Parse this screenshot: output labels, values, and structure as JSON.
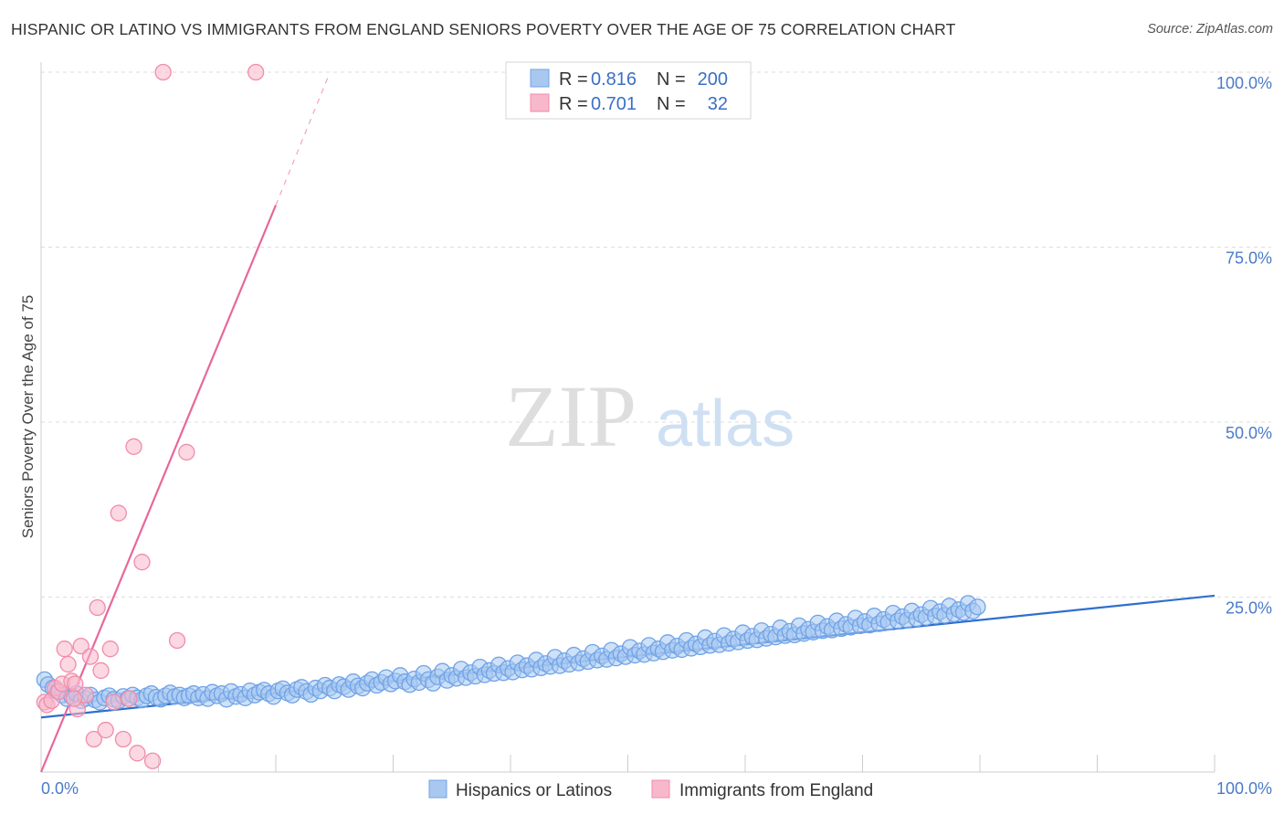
{
  "title": "HISPANIC OR LATINO VS IMMIGRANTS FROM ENGLAND SENIORS POVERTY OVER THE AGE OF 75 CORRELATION CHART",
  "source": "Source: ZipAtlas.com",
  "watermark": {
    "zip": "ZIP",
    "atlas": "atlas"
  },
  "legend": {
    "rows": [
      {
        "r_label": "R = ",
        "r_value": "0.816",
        "n_label": "N = ",
        "n_value": "200",
        "color": "#a8c8f0"
      },
      {
        "r_label": "R = ",
        "r_value": "0.701",
        "n_label": "N = ",
        "n_value": "32",
        "color": "#f7b8cb"
      }
    ]
  },
  "chart_data": {
    "type": "scatter",
    "xlabel": "",
    "ylabel": "Seniors Poverty Over the Age of 75",
    "xlim": [
      0,
      100
    ],
    "ylim": [
      0,
      100
    ],
    "x_tick_labels": [
      "0.0%",
      "100.0%"
    ],
    "y_ticks": [
      25,
      50,
      75,
      100
    ],
    "y_tick_labels": [
      "25.0%",
      "50.0%",
      "75.0%",
      "100.0%"
    ],
    "grid": true,
    "legend_position": "top-center",
    "series": [
      {
        "name": "Hispanics or Latinos",
        "color": "#6fa3e8",
        "fill": "#a8c8f0",
        "trend": {
          "x": [
            0,
            100
          ],
          "y": [
            7.8,
            25.2
          ],
          "color": "#2f6fce"
        },
        "points": [
          [
            0.3,
            13.2
          ],
          [
            0.6,
            12.5
          ],
          [
            1.0,
            12.0
          ],
          [
            1.4,
            11.5
          ],
          [
            1.8,
            11.0
          ],
          [
            2.2,
            10.5
          ],
          [
            2.6,
            10.8
          ],
          [
            3.0,
            11.2
          ],
          [
            3.4,
            10.2
          ],
          [
            3.8,
            10.5
          ],
          [
            4.2,
            11.0
          ],
          [
            4.6,
            10.3
          ],
          [
            5.0,
            10.0
          ],
          [
            5.4,
            10.6
          ],
          [
            5.8,
            10.9
          ],
          [
            6.2,
            10.4
          ],
          [
            6.6,
            10.2
          ],
          [
            7.0,
            10.8
          ],
          [
            7.4,
            10.5
          ],
          [
            7.8,
            11.0
          ],
          [
            8.2,
            10.6
          ],
          [
            8.6,
            10.3
          ],
          [
            9.0,
            10.9
          ],
          [
            9.4,
            11.2
          ],
          [
            9.8,
            10.7
          ],
          [
            10.2,
            10.4
          ],
          [
            10.6,
            10.9
          ],
          [
            11.0,
            11.3
          ],
          [
            11.4,
            10.8
          ],
          [
            11.8,
            11.0
          ],
          [
            12.2,
            10.6
          ],
          [
            12.6,
            10.9
          ],
          [
            13.0,
            11.2
          ],
          [
            13.4,
            10.6
          ],
          [
            13.8,
            11.1
          ],
          [
            14.2,
            10.5
          ],
          [
            14.6,
            11.4
          ],
          [
            15.0,
            10.9
          ],
          [
            15.4,
            11.2
          ],
          [
            15.8,
            10.4
          ],
          [
            16.2,
            11.5
          ],
          [
            16.6,
            10.8
          ],
          [
            17.0,
            11.1
          ],
          [
            17.4,
            10.6
          ],
          [
            17.8,
            11.6
          ],
          [
            18.2,
            11.0
          ],
          [
            18.6,
            11.4
          ],
          [
            19.0,
            11.7
          ],
          [
            19.4,
            11.2
          ],
          [
            19.8,
            10.8
          ],
          [
            20.2,
            11.6
          ],
          [
            20.6,
            11.9
          ],
          [
            21.0,
            11.3
          ],
          [
            21.4,
            11.0
          ],
          [
            21.8,
            11.8
          ],
          [
            22.2,
            12.1
          ],
          [
            22.6,
            11.5
          ],
          [
            23.0,
            11.1
          ],
          [
            23.4,
            12.0
          ],
          [
            23.8,
            11.6
          ],
          [
            24.2,
            12.4
          ],
          [
            24.6,
            12.0
          ],
          [
            25.0,
            11.6
          ],
          [
            25.4,
            12.5
          ],
          [
            25.8,
            12.2
          ],
          [
            26.2,
            11.8
          ],
          [
            26.6,
            12.9
          ],
          [
            27.0,
            12.3
          ],
          [
            27.4,
            12.0
          ],
          [
            27.8,
            12.7
          ],
          [
            28.2,
            13.2
          ],
          [
            28.6,
            12.4
          ],
          [
            29.0,
            12.8
          ],
          [
            29.4,
            13.5
          ],
          [
            29.8,
            12.6
          ],
          [
            30.2,
            13.0
          ],
          [
            30.6,
            13.8
          ],
          [
            31.0,
            12.9
          ],
          [
            31.4,
            12.5
          ],
          [
            31.8,
            13.3
          ],
          [
            32.2,
            12.8
          ],
          [
            32.6,
            14.1
          ],
          [
            33.0,
            13.2
          ],
          [
            33.4,
            12.7
          ],
          [
            33.8,
            13.6
          ],
          [
            34.2,
            14.4
          ],
          [
            34.6,
            13.1
          ],
          [
            35.0,
            13.8
          ],
          [
            35.4,
            13.4
          ],
          [
            35.8,
            14.7
          ],
          [
            36.2,
            13.5
          ],
          [
            36.6,
            14.2
          ],
          [
            37.0,
            13.7
          ],
          [
            37.4,
            15.0
          ],
          [
            37.8,
            13.9
          ],
          [
            38.2,
            14.5
          ],
          [
            38.6,
            14.1
          ],
          [
            39.0,
            15.3
          ],
          [
            39.4,
            14.2
          ],
          [
            39.8,
            14.8
          ],
          [
            40.2,
            14.3
          ],
          [
            40.6,
            15.6
          ],
          [
            41.0,
            14.6
          ],
          [
            41.4,
            15.2
          ],
          [
            41.8,
            14.7
          ],
          [
            42.2,
            16.0
          ],
          [
            42.6,
            14.9
          ],
          [
            43.0,
            15.5
          ],
          [
            43.4,
            15.1
          ],
          [
            43.8,
            16.4
          ],
          [
            44.2,
            15.2
          ],
          [
            44.6,
            15.9
          ],
          [
            45.0,
            15.4
          ],
          [
            45.4,
            16.7
          ],
          [
            45.8,
            15.6
          ],
          [
            46.2,
            16.2
          ],
          [
            46.6,
            15.8
          ],
          [
            47.0,
            17.1
          ],
          [
            47.4,
            16.0
          ],
          [
            47.8,
            16.6
          ],
          [
            48.2,
            16.1
          ],
          [
            48.6,
            17.4
          ],
          [
            49.0,
            16.3
          ],
          [
            49.4,
            16.9
          ],
          [
            49.8,
            16.5
          ],
          [
            50.2,
            17.8
          ],
          [
            50.6,
            16.7
          ],
          [
            51.0,
            17.3
          ],
          [
            51.4,
            16.8
          ],
          [
            51.8,
            18.1
          ],
          [
            52.2,
            17.0
          ],
          [
            52.6,
            17.6
          ],
          [
            53.0,
            17.2
          ],
          [
            53.4,
            18.5
          ],
          [
            53.8,
            17.4
          ],
          [
            54.2,
            18.0
          ],
          [
            54.6,
            17.5
          ],
          [
            55.0,
            18.8
          ],
          [
            55.4,
            17.7
          ],
          [
            55.8,
            18.3
          ],
          [
            56.2,
            17.9
          ],
          [
            56.6,
            19.2
          ],
          [
            57.0,
            18.1
          ],
          [
            57.4,
            18.7
          ],
          [
            57.8,
            18.2
          ],
          [
            58.2,
            19.5
          ],
          [
            58.6,
            18.4
          ],
          [
            59.0,
            19.0
          ],
          [
            59.4,
            18.6
          ],
          [
            59.8,
            19.9
          ],
          [
            60.2,
            18.8
          ],
          [
            60.6,
            19.4
          ],
          [
            61.0,
            18.9
          ],
          [
            61.4,
            20.2
          ],
          [
            61.8,
            19.1
          ],
          [
            62.2,
            19.7
          ],
          [
            62.6,
            19.3
          ],
          [
            63.0,
            20.6
          ],
          [
            63.4,
            19.5
          ],
          [
            63.8,
            20.1
          ],
          [
            64.2,
            19.6
          ],
          [
            64.6,
            20.9
          ],
          [
            65.0,
            19.8
          ],
          [
            65.4,
            20.4
          ],
          [
            65.8,
            20.0
          ],
          [
            66.2,
            21.3
          ],
          [
            66.6,
            20.2
          ],
          [
            67.0,
            20.8
          ],
          [
            67.4,
            20.3
          ],
          [
            67.8,
            21.6
          ],
          [
            68.2,
            20.5
          ],
          [
            68.6,
            21.1
          ],
          [
            69.0,
            20.7
          ],
          [
            69.4,
            22.0
          ],
          [
            69.8,
            20.9
          ],
          [
            70.2,
            21.5
          ],
          [
            70.6,
            21.0
          ],
          [
            71.0,
            22.3
          ],
          [
            71.4,
            21.2
          ],
          [
            71.8,
            21.8
          ],
          [
            72.2,
            21.4
          ],
          [
            72.6,
            22.7
          ],
          [
            73.0,
            21.6
          ],
          [
            73.4,
            22.2
          ],
          [
            73.8,
            21.7
          ],
          [
            74.2,
            23.0
          ],
          [
            74.6,
            21.9
          ],
          [
            75.0,
            22.5
          ],
          [
            75.4,
            22.1
          ],
          [
            75.8,
            23.4
          ],
          [
            76.2,
            22.3
          ],
          [
            76.6,
            22.9
          ],
          [
            77.0,
            22.4
          ],
          [
            77.4,
            23.7
          ],
          [
            77.8,
            22.6
          ],
          [
            78.2,
            23.2
          ],
          [
            78.6,
            22.8
          ],
          [
            79.0,
            24.1
          ],
          [
            79.4,
            23.0
          ],
          [
            79.8,
            23.6
          ]
        ]
      },
      {
        "name": "Immigrants from England",
        "color": "#f28bab",
        "fill": "#f7b8cb",
        "trend": {
          "x": [
            0,
            20
          ],
          "y": [
            0,
            81
          ],
          "dashed_to": [
            24.5,
            99.5
          ],
          "color": "#e8679a"
        },
        "points": [
          [
            0.3,
            10.0
          ],
          [
            0.5,
            9.6
          ],
          [
            0.9,
            10.2
          ],
          [
            1.2,
            12.0
          ],
          [
            1.5,
            11.5
          ],
          [
            1.8,
            12.6
          ],
          [
            2.0,
            17.6
          ],
          [
            2.3,
            15.4
          ],
          [
            2.6,
            13.0
          ],
          [
            2.9,
            12.6
          ],
          [
            3.1,
            9.0
          ],
          [
            3.4,
            18.0
          ],
          [
            3.8,
            11.0
          ],
          [
            4.2,
            16.5
          ],
          [
            4.5,
            4.7
          ],
          [
            4.8,
            23.5
          ],
          [
            5.1,
            14.5
          ],
          [
            5.5,
            6.0
          ],
          [
            5.9,
            17.6
          ],
          [
            6.2,
            10.0
          ],
          [
            6.6,
            37.0
          ],
          [
            7.0,
            4.7
          ],
          [
            7.5,
            10.5
          ],
          [
            7.9,
            46.5
          ],
          [
            8.2,
            2.7
          ],
          [
            8.6,
            30.0
          ],
          [
            9.5,
            1.6
          ],
          [
            10.4,
            100.0
          ],
          [
            11.6,
            18.8
          ],
          [
            12.4,
            45.7
          ],
          [
            18.3,
            100.0
          ],
          [
            2.8,
            10.5
          ]
        ]
      }
    ]
  },
  "bottom_legend": [
    {
      "label": "Hispanics or Latinos",
      "color": "#a8c8f0"
    },
    {
      "label": "Immigrants from England",
      "color": "#f7b8cb"
    }
  ]
}
